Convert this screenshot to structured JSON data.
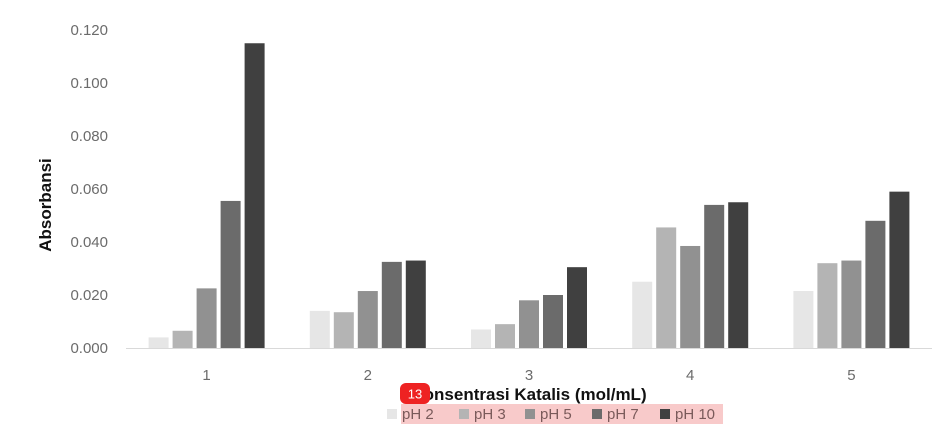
{
  "chart_data": {
    "type": "bar",
    "title": "",
    "xlabel": "Konsentrasi Katalis (mol/mL)",
    "ylabel": "Absorbansi",
    "categories": [
      "1",
      "2",
      "3",
      "4",
      "5"
    ],
    "ylim": [
      0,
      0.12
    ],
    "yticks": [
      "0.000",
      "0.020",
      "0.040",
      "0.060",
      "0.080",
      "0.100",
      "0.120"
    ],
    "grid": false,
    "legend_position": "bottom",
    "series": [
      {
        "name": "pH 2",
        "color": "#e6e6e6",
        "values": [
          0.004,
          0.014,
          0.007,
          0.025,
          0.0215
        ]
      },
      {
        "name": "pH 3",
        "color": "#b4b4b4",
        "values": [
          0.0065,
          0.0135,
          0.009,
          0.0455,
          0.032
        ]
      },
      {
        "name": "pH 5",
        "color": "#919191",
        "values": [
          0.0225,
          0.0215,
          0.018,
          0.0385,
          0.033
        ]
      },
      {
        "name": "pH 7",
        "color": "#6b6b6b",
        "values": [
          0.0555,
          0.0325,
          0.02,
          0.054,
          0.048
        ]
      },
      {
        "name": "pH 10",
        "color": "#404040",
        "values": [
          0.115,
          0.033,
          0.0305,
          0.055,
          0.059
        ]
      }
    ]
  },
  "overlay": {
    "badge_label": "13",
    "badge_color": "#ee2222",
    "highlight_color": "#f8caca"
  }
}
